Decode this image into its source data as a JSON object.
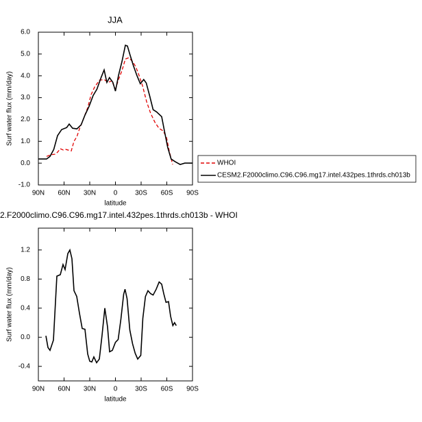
{
  "chart_data": [
    {
      "type": "line",
      "title": "JJA",
      "xlabel": "latitude",
      "ylabel": "Surf water flux (mm/day)",
      "xlim": [
        90,
        -90
      ],
      "xticks": [
        {
          "value": 90,
          "label": "90N"
        },
        {
          "value": 60,
          "label": "60N"
        },
        {
          "value": 30,
          "label": "30N"
        },
        0,
        {
          "value": -30,
          "label": "30S"
        },
        {
          "value": -60,
          "label": "60S"
        },
        {
          "value": -90,
          "label": "90S"
        }
      ],
      "ylim": [
        -1,
        6
      ],
      "yticks": [
        {
          "value": -1,
          "label": "-1.0"
        },
        {
          "value": 0,
          "label": "0.0"
        },
        {
          "value": 1,
          "label": "1.0"
        },
        {
          "value": 2,
          "label": "2.0"
        },
        {
          "value": 3,
          "label": "3.0"
        },
        {
          "value": 4,
          "label": "4.0"
        },
        {
          "value": 5,
          "label": "5.0"
        },
        {
          "value": 6,
          "label": "6.0"
        }
      ],
      "legend": "right",
      "series": [
        {
          "name": "WHOI",
          "color": "#e00000",
          "dash": true,
          "x": [
            80.4,
            75.6,
            70.8,
            67.6,
            64.4,
            61,
            58,
            51.6,
            48.4,
            45,
            42,
            37,
            32.4,
            28.4,
            24.4,
            18.8,
            13.2,
            8.4,
            4.4,
            0,
            -3.6,
            -7.6,
            -11.6,
            -15.6,
            -19.6,
            -23.6,
            -27.6,
            -31.6,
            -36.4,
            -41,
            -46,
            -50.8,
            -55.6,
            -59.6,
            -62.8,
            -66.8
          ],
          "values": [
            0.31,
            0.38,
            0.41,
            0.5,
            0.66,
            0.6,
            0.63,
            0.56,
            1.0,
            1.22,
            1.57,
            2.07,
            2.54,
            3.14,
            3.48,
            3.8,
            3.83,
            3.7,
            3.77,
            3.39,
            3.83,
            4.24,
            4.77,
            4.83,
            4.68,
            4.43,
            4.02,
            3.55,
            2.82,
            2.29,
            1.88,
            1.6,
            1.48,
            1.19,
            0.56,
            -0.06
          ]
        },
        {
          "name": "CESM2.F2000climo.C96.C96.mg17.intel.432pes.1thrds.ch013b",
          "color": "#000000",
          "dash": false,
          "x": [
            90,
            80.4,
            76.4,
            72,
            67.6,
            62.8,
            57,
            54,
            50,
            45,
            40,
            35.6,
            30.8,
            26,
            21.6,
            16.8,
            13.2,
            10,
            7,
            3,
            0,
            -3.6,
            -7.6,
            -11.6,
            -14,
            -17,
            -21,
            -25,
            -29,
            -33,
            -36,
            -40,
            -44,
            -48,
            -54,
            -57,
            -61,
            -65,
            -70,
            -75.6,
            -81,
            -90
          ],
          "values": [
            0.19,
            0.19,
            0.31,
            0.63,
            1.26,
            1.54,
            1.63,
            1.79,
            1.6,
            1.57,
            1.76,
            2.2,
            2.6,
            3.1,
            3.39,
            3.92,
            4.27,
            3.7,
            3.92,
            3.7,
            3.3,
            4.02,
            4.65,
            5.4,
            5.37,
            4.96,
            4.46,
            4.02,
            3.64,
            3.83,
            3.67,
            3.08,
            2.45,
            2.35,
            2.13,
            1.51,
            0.72,
            0.19,
            0.06,
            -0.06,
            0,
            0
          ]
        }
      ]
    },
    {
      "type": "line",
      "title": "2.F2000climo.C96.C96.mg17.intel.432pes.1thrds.ch013b - WHOI",
      "xlabel": "latitude",
      "ylabel": "Surf water flux (mm/day)",
      "xlim": [
        90,
        -90
      ],
      "xticks": [
        {
          "value": 90,
          "label": "90N"
        },
        {
          "value": 60,
          "label": "60N"
        },
        {
          "value": 30,
          "label": "30N"
        },
        0,
        {
          "value": -30,
          "label": "30S"
        },
        {
          "value": -60,
          "label": "60S"
        },
        {
          "value": -90,
          "label": "90S"
        }
      ],
      "ylim": [
        -0.6,
        1.5
      ],
      "yticks": [
        -0.4,
        {
          "value": 0,
          "label": "0.0"
        },
        0.4,
        0.8,
        1.2
      ],
      "series": [
        {
          "color": "#000000",
          "dash": false,
          "x": [
            81.2,
            78.8,
            76.4,
            72.4,
            68.4,
            64.4,
            61.2,
            58.8,
            55.6,
            53.2,
            50.8,
            48.4,
            45.2,
            42,
            38.8,
            35.6,
            32.4,
            30,
            27.6,
            25.2,
            22,
            18.8,
            15.6,
            12.4,
            9.2,
            6.8,
            3.6,
            0,
            -3.2,
            -6.4,
            -9.6,
            -11.2,
            -13.6,
            -16.8,
            -20,
            -23,
            -26,
            -29.6,
            -32,
            -35,
            -38,
            -41,
            -44,
            -47.6,
            -51,
            -54,
            -56.4,
            -59,
            -62,
            -64.4,
            -67,
            -69,
            -71
          ],
          "values": [
            0.02,
            -0.14,
            -0.18,
            -0.04,
            0.84,
            0.86,
            1.0,
            0.93,
            1.15,
            1.2,
            1.08,
            0.64,
            0.56,
            0.33,
            0.12,
            0.11,
            -0.23,
            -0.33,
            -0.34,
            -0.27,
            -0.35,
            -0.3,
            0.03,
            0.4,
            0.14,
            -0.2,
            -0.18,
            -0.07,
            -0.03,
            0.25,
            0.59,
            0.66,
            0.53,
            0.1,
            -0.09,
            -0.22,
            -0.3,
            -0.25,
            0.26,
            0.56,
            0.64,
            0.6,
            0.58,
            0.66,
            0.76,
            0.73,
            0.6,
            0.48,
            0.49,
            0.29,
            0.16,
            0.2,
            0.16
          ]
        }
      ]
    }
  ]
}
